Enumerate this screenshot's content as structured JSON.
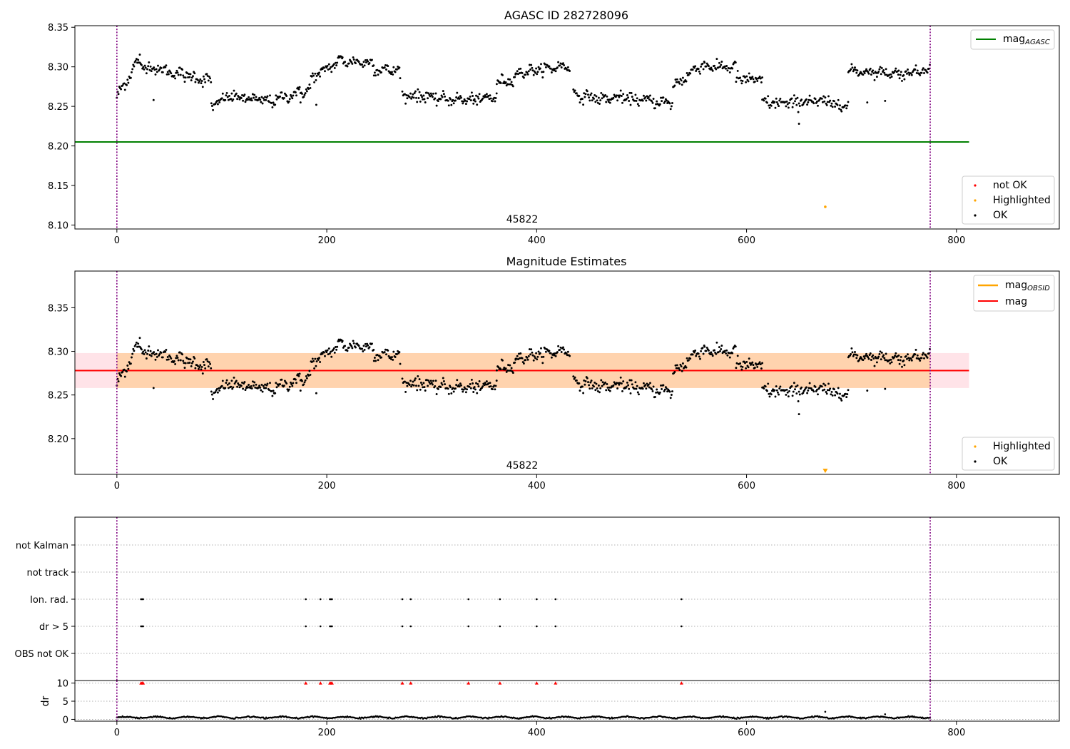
{
  "figure": {
    "background": "#ffffff"
  },
  "chart_data": [
    {
      "id": "p1",
      "type": "scatter",
      "title": "AGASC ID 282728096",
      "xlim": [
        -40,
        898
      ],
      "ylim": [
        8.095,
        8.352
      ],
      "yticks": [
        8.1,
        8.15,
        8.2,
        8.25,
        8.3,
        8.35
      ],
      "ytick_labels": [
        "8.10",
        "8.15",
        "8.20",
        "8.25",
        "8.30",
        "8.35"
      ],
      "xticks": [
        0,
        200,
        400,
        600,
        800
      ],
      "xtick_labels": [
        "0",
        "200",
        "400",
        "600",
        "800"
      ],
      "vlines": {
        "x": [
          0,
          775
        ],
        "color": "#800080",
        "style": "dotted"
      },
      "obsid_label": {
        "text": "45822",
        "x": 387
      },
      "hlines": [
        {
          "name": "mag_AGASC",
          "y": 8.205,
          "x_range": [
            -40,
            812
          ],
          "color": "#008000"
        }
      ],
      "highlighted_points": [
        {
          "x": 675,
          "y": 8.123
        }
      ],
      "ok_series": {
        "segments": "shared.segments"
      },
      "legend_upper": [
        {
          "kind": "line",
          "color": "#008000",
          "label": "mag",
          "sub": "AGASC"
        }
      ],
      "legend_lower": [
        {
          "kind": "dot",
          "color": "#ff0000",
          "label": "not OK"
        },
        {
          "kind": "dot",
          "color": "#ffa500",
          "label": "Highlighted"
        },
        {
          "kind": "dot",
          "color": "#000000",
          "label": "OK"
        }
      ]
    },
    {
      "id": "p2",
      "type": "scatter",
      "title": "Magnitude Estimates",
      "xlim": [
        -40,
        898
      ],
      "ylim": [
        8.159,
        8.392
      ],
      "yticks": [
        8.2,
        8.25,
        8.3,
        8.35
      ],
      "ytick_labels": [
        "8.20",
        "8.25",
        "8.30",
        "8.35"
      ],
      "xticks": [
        0,
        200,
        400,
        600,
        800
      ],
      "xtick_labels": [
        "0",
        "200",
        "400",
        "600",
        "800"
      ],
      "vlines": {
        "x": [
          0,
          775
        ],
        "color": "#800080",
        "style": "dotted"
      },
      "obsid_label": {
        "text": "45822",
        "x": 387
      },
      "bands": [
        {
          "name": "mag band",
          "y": [
            8.258,
            8.298
          ],
          "x_range": [
            -40,
            812
          ],
          "color": "#ffc0cb",
          "opacity": 0.45
        },
        {
          "name": "mag_OBSID band",
          "y": [
            8.258,
            8.298
          ],
          "x_range": [
            0,
            775
          ],
          "color": "#ffa500",
          "opacity": 0.25
        }
      ],
      "hlines": [
        {
          "name": "mag_OBSID",
          "y": 8.278,
          "x_range": [
            0,
            775
          ],
          "color": "#ffa500"
        },
        {
          "name": "mag",
          "y": 8.278,
          "x_range": [
            -40,
            812
          ],
          "color": "#ff0000"
        }
      ],
      "highlighted_points": [
        {
          "x": 675,
          "y": 8.163,
          "marker": "triangle-down"
        }
      ],
      "ok_series": {
        "segments": "shared.segments"
      },
      "legend_upper": [
        {
          "kind": "line",
          "color": "#ffa500",
          "label": "mag",
          "sub": "OBSID"
        },
        {
          "kind": "line",
          "color": "#ff0000",
          "label": "mag",
          "sub": ""
        }
      ],
      "legend_lower": [
        {
          "kind": "dot",
          "color": "#ffa500",
          "label": "Highlighted"
        },
        {
          "kind": "dot",
          "color": "#000000",
          "label": "OK"
        }
      ]
    },
    {
      "id": "p3",
      "type": "scatter",
      "title": "",
      "xlim": [
        -40,
        898
      ],
      "categories": [
        "not Kalman",
        "not track",
        "Ion. rad.",
        "dr > 5",
        "OBS not OK"
      ],
      "vlines": {
        "x": [
          0,
          775
        ],
        "color": "#800080",
        "style": "dotted"
      },
      "flags": {
        "not Kalman": [],
        "not track": [],
        "Ion. rad.": [
          23,
          24,
          25,
          180,
          194,
          203,
          204,
          205,
          272,
          280,
          335,
          365,
          400,
          418,
          538
        ],
        "dr > 5": [
          23,
          24,
          25,
          180,
          194,
          203,
          204,
          205,
          272,
          280,
          335,
          365,
          400,
          418,
          538
        ],
        "OBS not OK": []
      }
    },
    {
      "id": "p4",
      "type": "scatter",
      "title": "",
      "ylabel": "dr",
      "xlim": [
        -40,
        898
      ],
      "ylim": [
        -0.5,
        10.7
      ],
      "yticks": [
        0,
        5,
        10
      ],
      "ytick_labels": [
        "0",
        "5",
        "10"
      ],
      "xticks": [
        0,
        200,
        400,
        600,
        800
      ],
      "xtick_labels": [
        "0",
        "200",
        "400",
        "600",
        "800"
      ],
      "vlines": {
        "x": [
          0,
          775
        ],
        "color": "#800080",
        "style": "dotted"
      },
      "capped_points": {
        "y": 10,
        "color": "#ff0000",
        "x": [
          23,
          24,
          25,
          180,
          194,
          203,
          204,
          205,
          272,
          280,
          335,
          365,
          400,
          418,
          538
        ]
      },
      "outliers": [
        {
          "x": 675,
          "y": 2.1
        },
        {
          "x": 732,
          "y": 1.4
        }
      ],
      "baseline": {
        "y_range": [
          0.1,
          1.0
        ]
      }
    }
  ],
  "shared": {
    "segments": [
      {
        "x": [
          0,
          22
        ],
        "y": [
          8.262,
          8.312
        ],
        "noise": 0.007
      },
      {
        "x": [
          22,
          60
        ],
        "y": [
          8.302,
          8.291
        ],
        "noise": 0.006
      },
      {
        "x": [
          60,
          90
        ],
        "y": [
          8.291,
          8.282
        ],
        "noise": 0.007
      },
      {
        "x": [
          90,
          110
        ],
        "y": [
          8.25,
          8.265
        ],
        "noise": 0.006
      },
      {
        "x": [
          110,
          150
        ],
        "y": [
          8.262,
          8.256
        ],
        "noise": 0.006
      },
      {
        "x": [
          150,
          185
        ],
        "y": [
          8.258,
          8.272
        ],
        "noise": 0.006
      },
      {
        "x": [
          185,
          215
        ],
        "y": [
          8.285,
          8.31
        ],
        "noise": 0.006
      },
      {
        "x": [
          215,
          245
        ],
        "y": [
          8.307,
          8.305
        ],
        "noise": 0.006
      },
      {
        "x": [
          245,
          270
        ],
        "y": [
          8.297,
          8.295
        ],
        "noise": 0.006
      },
      {
        "x": [
          272,
          300
        ],
        "y": [
          8.264,
          8.263
        ],
        "noise": 0.007
      },
      {
        "x": [
          300,
          340
        ],
        "y": [
          8.26,
          8.258
        ],
        "noise": 0.006
      },
      {
        "x": [
          340,
          362
        ],
        "y": [
          8.258,
          8.262
        ],
        "noise": 0.006
      },
      {
        "x": [
          362,
          380
        ],
        "y": [
          8.28,
          8.285
        ],
        "noise": 0.006
      },
      {
        "x": [
          380,
          432
        ],
        "y": [
          8.292,
          8.302
        ],
        "noise": 0.006
      },
      {
        "x": [
          435,
          470
        ],
        "y": [
          8.265,
          8.258
        ],
        "noise": 0.006
      },
      {
        "x": [
          470,
          530
        ],
        "y": [
          8.262,
          8.254
        ],
        "noise": 0.006
      },
      {
        "x": [
          530,
          560
        ],
        "y": [
          8.275,
          8.306
        ],
        "noise": 0.007
      },
      {
        "x": [
          560,
          590
        ],
        "y": [
          8.3,
          8.3
        ],
        "noise": 0.006
      },
      {
        "x": [
          590,
          615
        ],
        "y": [
          8.285,
          8.283
        ],
        "noise": 0.007
      },
      {
        "x": [
          615,
          650
        ],
        "y": [
          8.255,
          8.253
        ],
        "noise": 0.007
      },
      {
        "x": [
          650,
          697
        ],
        "y": [
          8.258,
          8.252
        ],
        "noise": 0.007
      },
      {
        "x": [
          697,
          745
        ],
        "y": [
          8.295,
          8.292
        ],
        "noise": 0.005
      },
      {
        "x": [
          745,
          775
        ],
        "y": [
          8.29,
          8.298
        ],
        "noise": 0.006
      }
    ],
    "extra_points": [
      {
        "x": 35,
        "y": 8.258
      },
      {
        "x": 190,
        "y": 8.252
      },
      {
        "x": 650,
        "y": 8.228
      },
      {
        "x": 715,
        "y": 8.255
      },
      {
        "x": 732,
        "y": 8.257
      },
      {
        "x": 175,
        "y": 8.255
      }
    ]
  }
}
